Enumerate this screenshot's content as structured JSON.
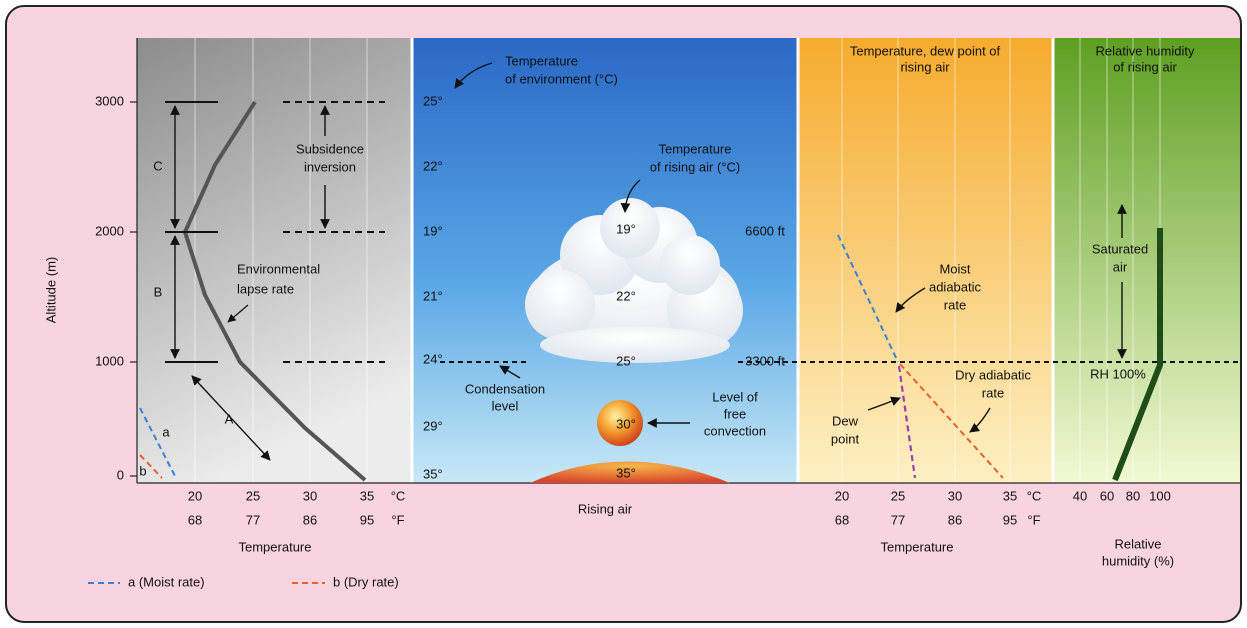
{
  "left_panel": {
    "axis_title": "Altitude (m)",
    "altitude_ticks": [
      "3000",
      "2000",
      "1000",
      "0"
    ],
    "layer_labels": [
      "C",
      "B",
      "A"
    ],
    "inversion_label": [
      "Subsidence",
      "inversion"
    ],
    "lapse_rate_label": [
      "Environmental",
      "lapse rate"
    ],
    "line_labels": [
      "a",
      "b"
    ],
    "celsius_ticks": [
      "20",
      "25",
      "30",
      "35"
    ],
    "celsius_unit": "°C",
    "fahrenheit_ticks": [
      "68",
      "77",
      "86",
      "95"
    ],
    "fahrenheit_unit": "°F",
    "axis_label": "Temperature"
  },
  "middle_panel": {
    "environment_label": [
      "Temperature",
      "of environment (°C)"
    ],
    "environment_temps": [
      "25°",
      "22°",
      "19°",
      "21°",
      "24°",
      "29°",
      "35°"
    ],
    "rising_label": [
      "Temperature",
      "of rising air (°C)"
    ],
    "rising_temps": [
      "19°",
      "22°",
      "25°",
      "30°",
      "35°"
    ],
    "heights": [
      "6600 ft",
      "3300 ft"
    ],
    "condensation_label": [
      "Condensation",
      "level"
    ],
    "convection_label": [
      "Level of",
      "free",
      "convection"
    ],
    "axis_label": "Rising air"
  },
  "dew_point_panel": {
    "title": [
      "Temperature, dew point of",
      "rising air"
    ],
    "moist_label": [
      "Moist",
      "adiabatic",
      "rate"
    ],
    "dry_label": [
      "Dry adiabatic",
      "rate"
    ],
    "dew_label": [
      "Dew",
      "point"
    ],
    "celsius_ticks": [
      "20",
      "25",
      "30",
      "35"
    ],
    "celsius_unit": "°C",
    "fahrenheit_ticks": [
      "68",
      "77",
      "86",
      "95"
    ],
    "fahrenheit_unit": "°F",
    "axis_label": "Temperature"
  },
  "humidity_panel": {
    "title": [
      "Relative humidity",
      "of rising air"
    ],
    "saturated_label": [
      "Saturated",
      "air"
    ],
    "rh_label": "RH 100%",
    "ticks": [
      "40",
      "60",
      "80",
      "100"
    ],
    "axis_label": [
      "Relative",
      "humidity (%)"
    ]
  },
  "legend": [
    "a (Moist rate)",
    "b (Dry rate)"
  ]
}
